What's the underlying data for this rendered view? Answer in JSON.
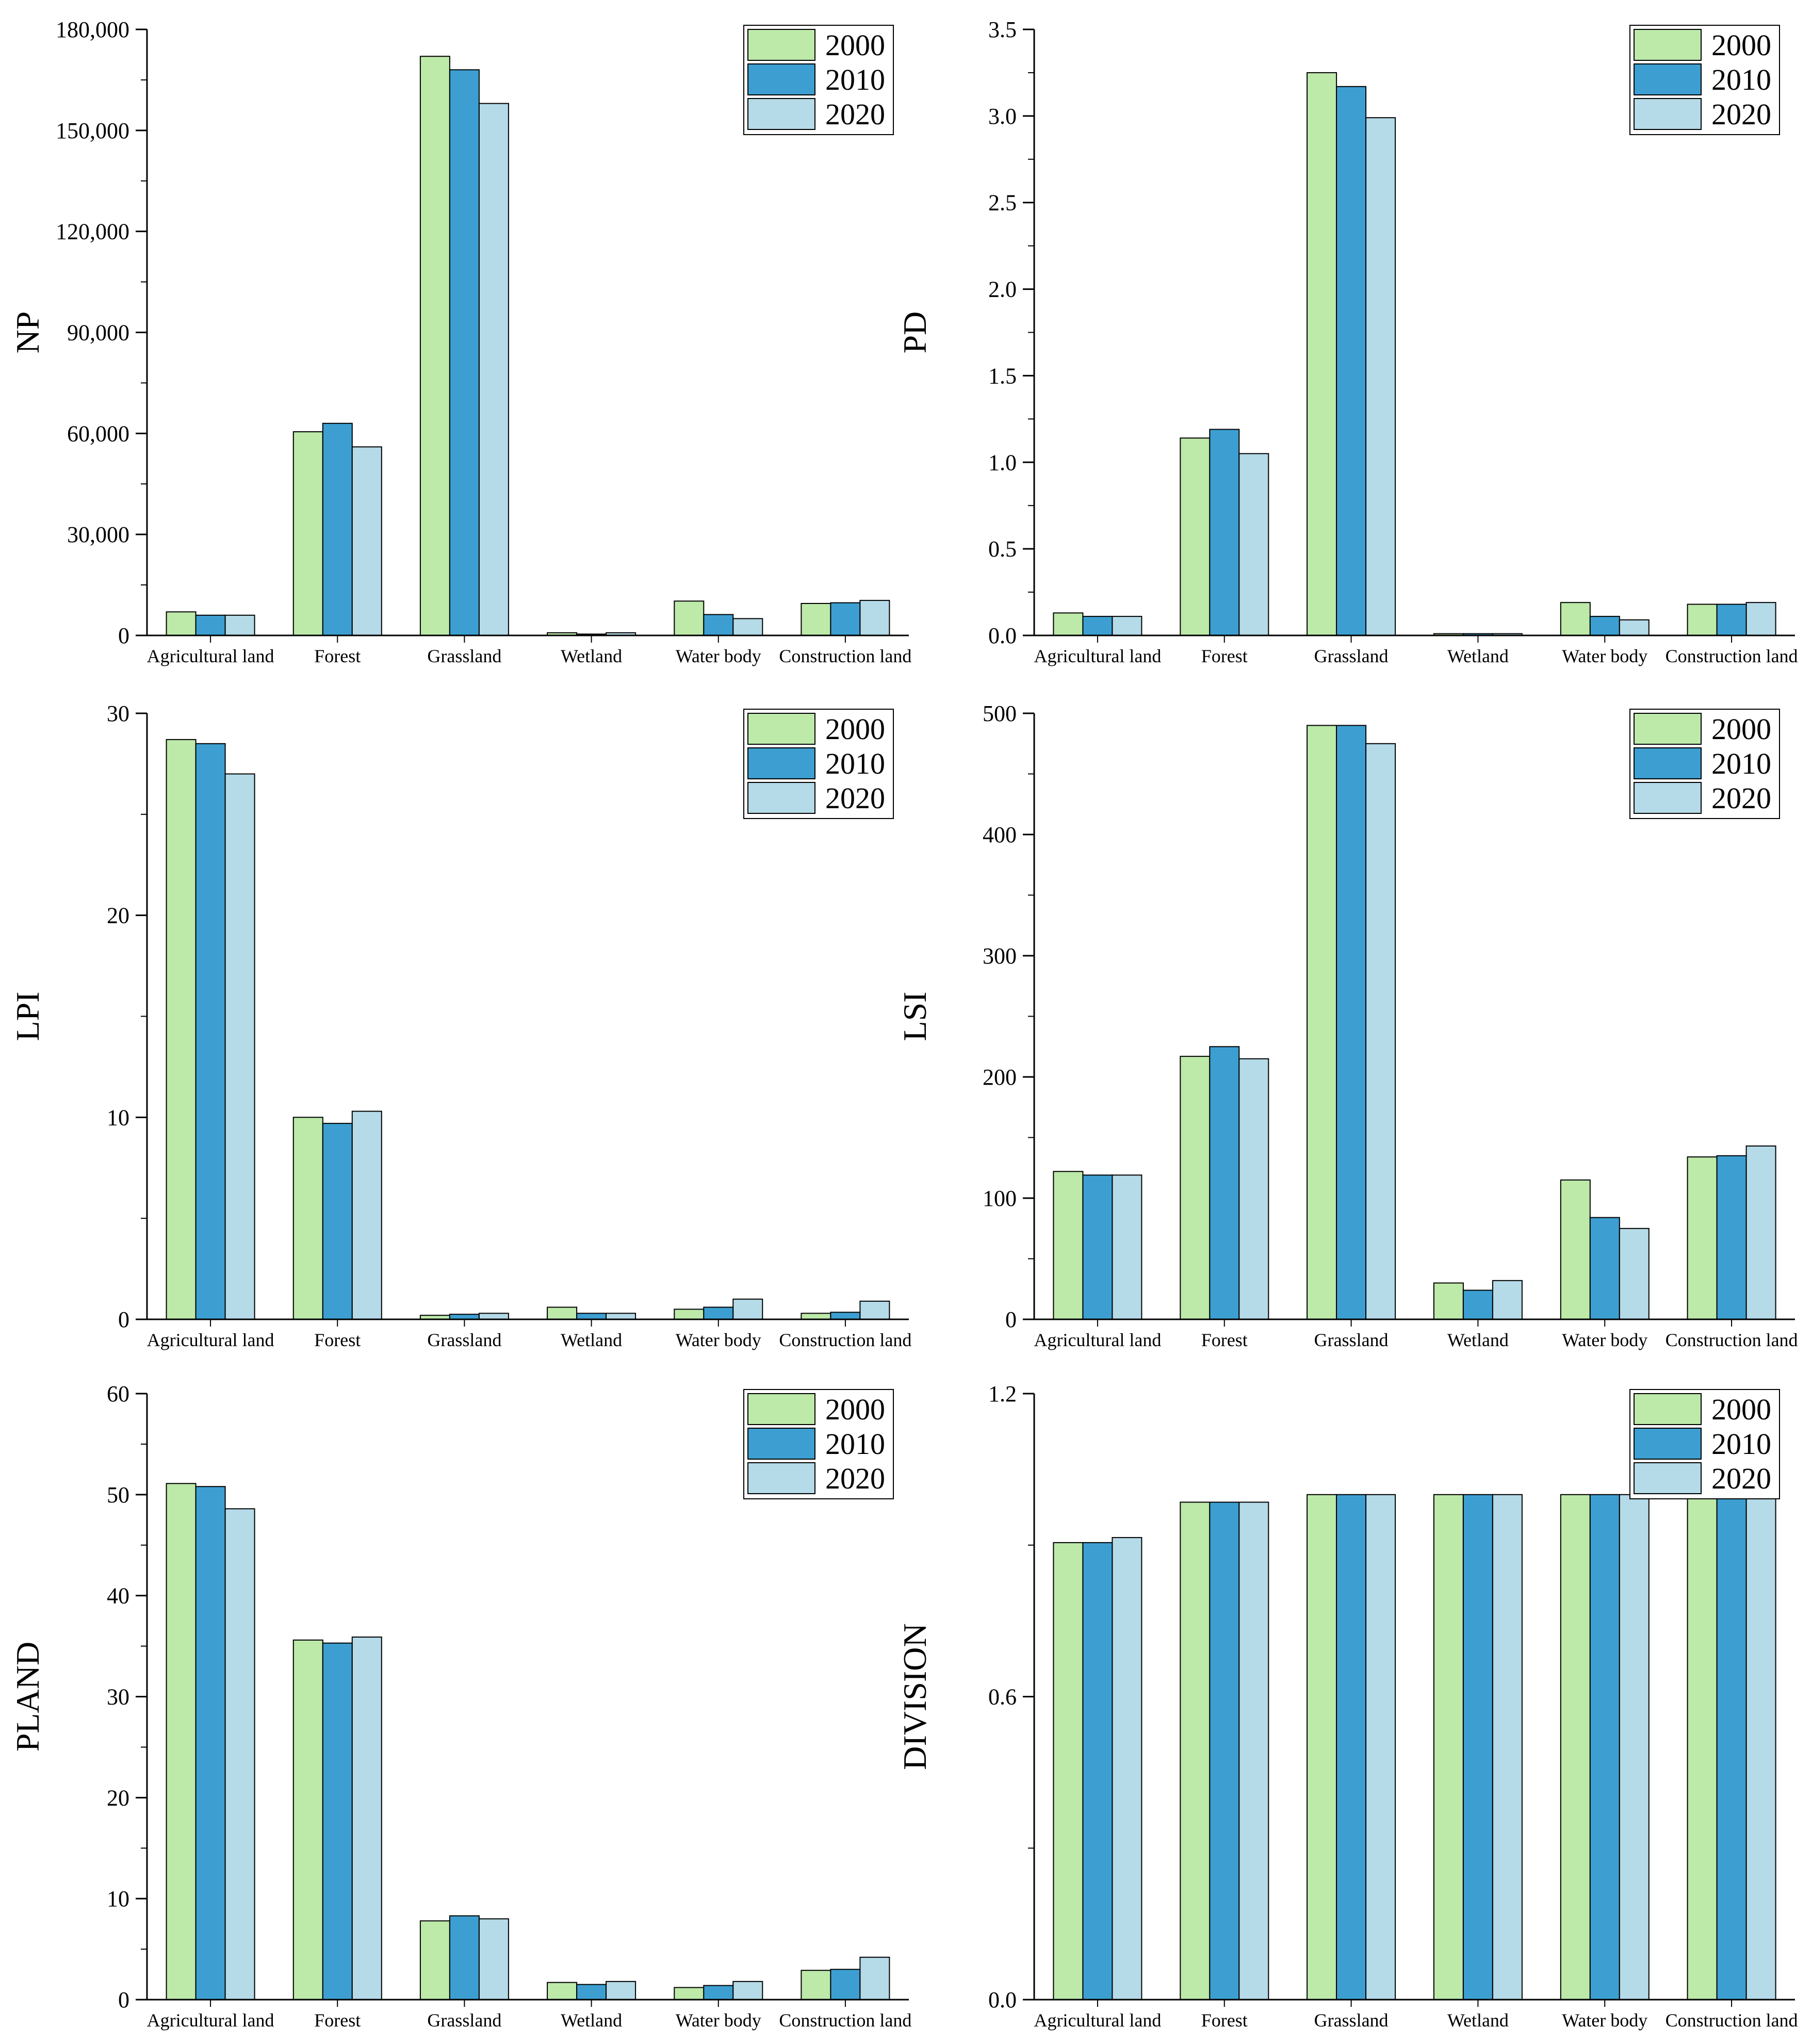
{
  "colors": {
    "y2000": "#bde9a9",
    "y2010": "#3d9fd1",
    "y2020": "#b5dae8",
    "axis": "#000000"
  },
  "chart_data": [
    {
      "type": "bar",
      "ylabel": "NP",
      "ylim": [
        0,
        180000
      ],
      "legend": "top-right",
      "yticks": [
        {
          "v": 0,
          "label": "0"
        },
        {
          "v": 30000,
          "label": "30,000"
        },
        {
          "v": 60000,
          "label": "60,000"
        },
        {
          "v": 90000,
          "label": "90,000"
        },
        {
          "v": 120000,
          "label": "120,000"
        },
        {
          "v": 150000,
          "label": "150,000"
        },
        {
          "v": 180000,
          "label": "180,000"
        }
      ],
      "categories": [
        "Agricultural land",
        "Forest",
        "Grassland",
        "Wetland",
        "Water body",
        "Construction land"
      ],
      "series": [
        {
          "name": "2000",
          "values": [
            7000,
            60500,
            172000,
            800,
            10200,
            9500
          ]
        },
        {
          "name": "2010",
          "values": [
            6000,
            63000,
            168000,
            400,
            6200,
            9700
          ]
        },
        {
          "name": "2020",
          "values": [
            6000,
            56000,
            158000,
            800,
            5000,
            10400
          ]
        }
      ]
    },
    {
      "type": "bar",
      "ylabel": "PD",
      "ylim": [
        0,
        3.5
      ],
      "legend": "top-right",
      "yticks": [
        {
          "v": 0,
          "label": "0.0"
        },
        {
          "v": 0.5,
          "label": "0.5"
        },
        {
          "v": 1.0,
          "label": "1.0"
        },
        {
          "v": 1.5,
          "label": "1.5"
        },
        {
          "v": 2.0,
          "label": "2.0"
        },
        {
          "v": 2.5,
          "label": "2.5"
        },
        {
          "v": 3.0,
          "label": "3.0"
        },
        {
          "v": 3.5,
          "label": "3.5"
        }
      ],
      "categories": [
        "Agricultural land",
        "Forest",
        "Grassland",
        "Wetland",
        "Water body",
        "Construction land"
      ],
      "series": [
        {
          "name": "2000",
          "values": [
            0.13,
            1.14,
            3.25,
            0.01,
            0.19,
            0.18
          ]
        },
        {
          "name": "2010",
          "values": [
            0.11,
            1.19,
            3.17,
            0.01,
            0.11,
            0.18
          ]
        },
        {
          "name": "2020",
          "values": [
            0.11,
            1.05,
            2.99,
            0.01,
            0.09,
            0.19
          ]
        }
      ]
    },
    {
      "type": "bar",
      "ylabel": "LPI",
      "ylim": [
        0,
        30
      ],
      "legend": "top-right",
      "yticks": [
        {
          "v": 0,
          "label": "0"
        },
        {
          "v": 10,
          "label": "10"
        },
        {
          "v": 20,
          "label": "20"
        },
        {
          "v": 30,
          "label": "30"
        }
      ],
      "categories": [
        "Agricultural land",
        "Forest",
        "Grassland",
        "Wetland",
        "Water body",
        "Construction land"
      ],
      "series": [
        {
          "name": "2000",
          "values": [
            28.7,
            10.0,
            0.2,
            0.6,
            0.5,
            0.3
          ]
        },
        {
          "name": "2010",
          "values": [
            28.5,
            9.7,
            0.25,
            0.3,
            0.6,
            0.35
          ]
        },
        {
          "name": "2020",
          "values": [
            27.0,
            10.3,
            0.3,
            0.3,
            1.0,
            0.9
          ]
        }
      ]
    },
    {
      "type": "bar",
      "ylabel": "LSI",
      "ylim": [
        0,
        500
      ],
      "legend": "top-right",
      "yticks": [
        {
          "v": 0,
          "label": "0"
        },
        {
          "v": 100,
          "label": "100"
        },
        {
          "v": 200,
          "label": "200"
        },
        {
          "v": 300,
          "label": "300"
        },
        {
          "v": 400,
          "label": "400"
        },
        {
          "v": 500,
          "label": "500"
        }
      ],
      "categories": [
        "Agricultural land",
        "Forest",
        "Grassland",
        "Wetland",
        "Water body",
        "Construction land"
      ],
      "series": [
        {
          "name": "2000",
          "values": [
            122,
            217,
            490,
            30,
            115,
            134
          ]
        },
        {
          "name": "2010",
          "values": [
            119,
            225,
            490,
            24,
            84,
            135
          ]
        },
        {
          "name": "2020",
          "values": [
            119,
            215,
            475,
            32,
            75,
            143
          ]
        }
      ]
    },
    {
      "type": "bar",
      "ylabel": "PLAND",
      "ylim": [
        0,
        60
      ],
      "legend": "top-right",
      "yticks": [
        {
          "v": 0,
          "label": "0"
        },
        {
          "v": 10,
          "label": "10"
        },
        {
          "v": 20,
          "label": "20"
        },
        {
          "v": 30,
          "label": "30"
        },
        {
          "v": 40,
          "label": "40"
        },
        {
          "v": 50,
          "label": "50"
        },
        {
          "v": 60,
          "label": "60"
        }
      ],
      "categories": [
        "Agricultural land",
        "Forest",
        "Grassland",
        "Wetland",
        "Water body",
        "Construction land"
      ],
      "series": [
        {
          "name": "2000",
          "values": [
            51.1,
            35.6,
            7.8,
            1.7,
            1.2,
            2.9
          ]
        },
        {
          "name": "2010",
          "values": [
            50.8,
            35.3,
            8.3,
            1.5,
            1.4,
            3.0
          ]
        },
        {
          "name": "2020",
          "values": [
            48.6,
            35.9,
            8.0,
            1.8,
            1.8,
            4.2
          ]
        }
      ]
    },
    {
      "type": "bar",
      "ylabel": "DIVISION",
      "ylim": [
        0,
        1.2
      ],
      "legend": "top-right",
      "yticks": [
        {
          "v": 0,
          "label": "0.0"
        },
        {
          "v": 0.6,
          "label": "0.6"
        },
        {
          "v": 1.2,
          "label": "1.2"
        }
      ],
      "categories": [
        "Agricultural land",
        "Forest",
        "Grassland",
        "Wetland",
        "Water body",
        "Construction land"
      ],
      "series": [
        {
          "name": "2000",
          "values": [
            0.905,
            0.985,
            1.0,
            1.0,
            1.0,
            1.0
          ]
        },
        {
          "name": "2010",
          "values": [
            0.905,
            0.985,
            1.0,
            1.0,
            1.0,
            1.0
          ]
        },
        {
          "name": "2020",
          "values": [
            0.915,
            0.985,
            1.0,
            1.0,
            1.0,
            1.0
          ]
        }
      ]
    }
  ]
}
